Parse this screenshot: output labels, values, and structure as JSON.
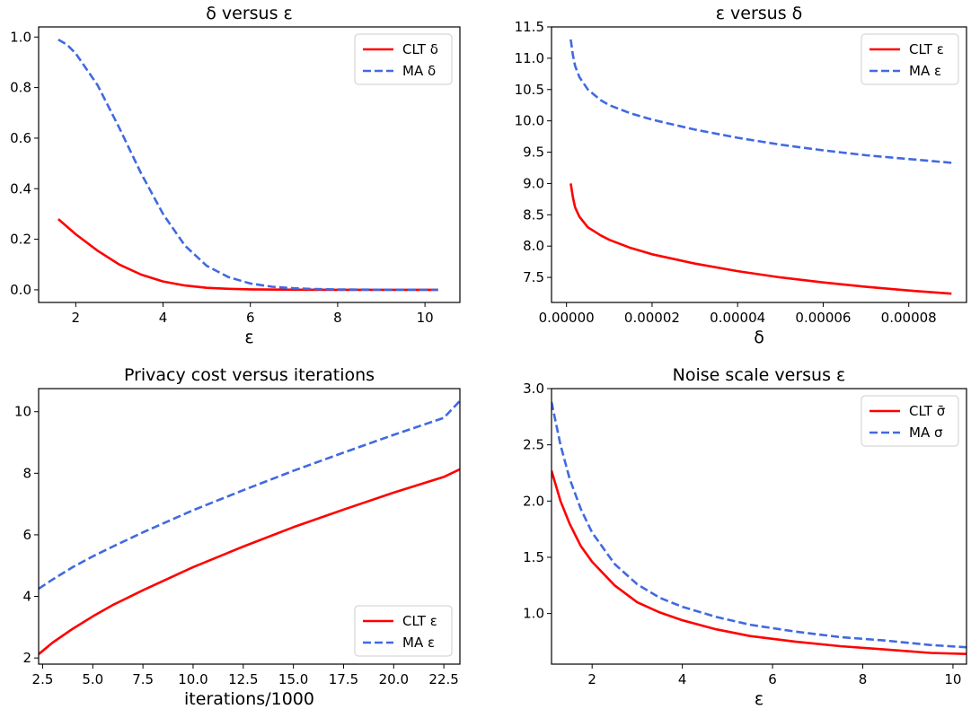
{
  "chart_data": [
    {
      "type": "line",
      "title": "δ versus ε",
      "xlabel": "ε",
      "ylabel": "",
      "xlim": [
        1.15,
        10.8
      ],
      "ylim": [
        -0.05,
        1.04
      ],
      "xticks": [
        2,
        4,
        6,
        8,
        10
      ],
      "xtick_labels": [
        "2",
        "4",
        "6",
        "8",
        "10"
      ],
      "yticks": [
        0.0,
        0.2,
        0.4,
        0.6,
        0.8,
        1.0
      ],
      "ytick_labels": [
        "0.0",
        "0.2",
        "0.4",
        "0.6",
        "0.8",
        "1.0"
      ],
      "legend_position": "top-right",
      "grid": false,
      "series": [
        {
          "name": "CLT δ",
          "color": "#ff0000",
          "style": "solid",
          "x": [
            1.6,
            2.0,
            2.5,
            3.0,
            3.5,
            4.0,
            4.5,
            5.0,
            5.5,
            6.0,
            7.0,
            8.0,
            9.0,
            10.3
          ],
          "y": [
            0.28,
            0.22,
            0.155,
            0.1,
            0.06,
            0.033,
            0.017,
            0.008,
            0.004,
            0.002,
            0.0005,
            0.0001,
            0.0,
            0.0
          ]
        },
        {
          "name": "MA δ",
          "color": "#4169e1",
          "style": "dashed",
          "x": [
            1.6,
            1.8,
            2.0,
            2.5,
            3.0,
            3.5,
            4.0,
            4.5,
            5.0,
            5.5,
            6.0,
            6.5,
            7.0,
            7.5,
            8.0,
            9.0,
            10.3
          ],
          "y": [
            0.99,
            0.97,
            0.935,
            0.81,
            0.64,
            0.46,
            0.3,
            0.175,
            0.095,
            0.05,
            0.025,
            0.012,
            0.006,
            0.003,
            0.0015,
            0.0003,
            0.0
          ]
        }
      ]
    },
    {
      "type": "line",
      "title": "ε versus δ",
      "xlabel": "δ",
      "ylabel": "",
      "xlim": [
        -3.5e-06,
        9.35e-05
      ],
      "ylim": [
        7.1,
        11.5
      ],
      "xticks": [
        0,
        2e-05,
        4e-05,
        6e-05,
        8e-05
      ],
      "xtick_labels": [
        "0.00000",
        "0.00002",
        "0.00004",
        "0.00006",
        "0.00008"
      ],
      "yticks": [
        7.5,
        8.0,
        8.5,
        9.0,
        9.5,
        10.0,
        10.5,
        11.0,
        11.5
      ],
      "ytick_labels": [
        "7.5",
        "8.0",
        "8.5",
        "9.0",
        "9.5",
        "10.0",
        "10.5",
        "11.0",
        "11.5"
      ],
      "legend_position": "top-right",
      "grid": false,
      "series": [
        {
          "name": "CLT ε",
          "color": "#ff0000",
          "style": "solid",
          "x": [
            1e-06,
            1.5e-06,
            2e-06,
            3e-06,
            5e-06,
            8e-06,
            1e-05,
            1.5e-05,
            2e-05,
            3e-05,
            4e-05,
            5e-05,
            6e-05,
            7e-05,
            8e-05,
            9e-05
          ],
          "y": [
            9.0,
            8.78,
            8.62,
            8.47,
            8.3,
            8.17,
            8.1,
            7.97,
            7.87,
            7.72,
            7.6,
            7.5,
            7.42,
            7.35,
            7.29,
            7.24
          ]
        },
        {
          "name": "MA ε",
          "color": "#4169e1",
          "style": "dashed",
          "x": [
            1e-06,
            1.5e-06,
            2e-06,
            3e-06,
            5e-06,
            8e-06,
            1e-05,
            1.5e-05,
            2e-05,
            3e-05,
            4e-05,
            5e-05,
            6e-05,
            7e-05,
            8e-05,
            9e-05
          ],
          "y": [
            11.3,
            11.05,
            10.88,
            10.7,
            10.5,
            10.33,
            10.25,
            10.12,
            10.02,
            9.86,
            9.73,
            9.62,
            9.53,
            9.45,
            9.39,
            9.33
          ]
        }
      ]
    },
    {
      "type": "line",
      "title": "Privacy cost versus iterations",
      "xlabel": "iterations/1000",
      "ylabel": "",
      "xlim": [
        2.3,
        23.3
      ],
      "ylim": [
        1.8,
        10.75
      ],
      "xticks": [
        2.5,
        5.0,
        7.5,
        10.0,
        12.5,
        15.0,
        17.5,
        20.0,
        22.5
      ],
      "xtick_labels": [
        "2.5",
        "5.0",
        "7.5",
        "10.0",
        "12.5",
        "15.0",
        "17.5",
        "20.0",
        "22.5"
      ],
      "yticks": [
        2,
        4,
        6,
        8,
        10
      ],
      "ytick_labels": [
        "2",
        "4",
        "6",
        "8",
        "10"
      ],
      "legend_position": "bottom-right",
      "grid": false,
      "series": [
        {
          "name": "CLT ε",
          "color": "#ff0000",
          "style": "solid",
          "x": [
            2.3,
            3.0,
            4.0,
            5.0,
            6.0,
            7.5,
            10.0,
            12.5,
            15.0,
            17.5,
            20.0,
            22.5,
            23.3
          ],
          "y": [
            2.12,
            2.5,
            2.95,
            3.35,
            3.72,
            4.2,
            4.95,
            5.62,
            6.25,
            6.82,
            7.37,
            7.88,
            8.13
          ]
        },
        {
          "name": "MA ε",
          "color": "#4169e1",
          "style": "dashed",
          "x": [
            2.3,
            3.0,
            4.0,
            5.0,
            6.0,
            7.5,
            10.0,
            12.5,
            15.0,
            17.5,
            20.0,
            22.5,
            23.3
          ],
          "y": [
            4.25,
            4.55,
            4.95,
            5.3,
            5.62,
            6.08,
            6.8,
            7.45,
            8.08,
            8.67,
            9.25,
            9.8,
            10.35
          ]
        }
      ]
    },
    {
      "type": "line",
      "title": "Noise scale versus ε",
      "xlabel": "ε",
      "ylabel": "",
      "xlim": [
        1.1,
        10.3
      ],
      "ylim": [
        0.55,
        3.0
      ],
      "xticks": [
        2,
        4,
        6,
        8,
        10
      ],
      "xtick_labels": [
        "2",
        "4",
        "6",
        "8",
        "10"
      ],
      "yticks": [
        1.0,
        1.5,
        2.0,
        2.5,
        3.0
      ],
      "ytick_labels": [
        "1.0",
        "1.5",
        "2.0",
        "2.5",
        "3.0"
      ],
      "legend_position": "top-right",
      "grid": false,
      "series": [
        {
          "name": "CLT σ̄",
          "color": "#ff0000",
          "style": "solid",
          "x": [
            1.1,
            1.3,
            1.5,
            1.75,
            2.0,
            2.5,
            3.0,
            3.5,
            4.0,
            4.75,
            5.5,
            6.5,
            7.5,
            8.5,
            9.5,
            10.3
          ],
          "y": [
            2.27,
            2.0,
            1.8,
            1.6,
            1.46,
            1.25,
            1.1,
            1.01,
            0.94,
            0.86,
            0.8,
            0.75,
            0.71,
            0.68,
            0.65,
            0.64
          ]
        },
        {
          "name": "MA σ",
          "color": "#4169e1",
          "style": "dashed",
          "x": [
            1.1,
            1.3,
            1.5,
            1.75,
            2.0,
            2.5,
            3.0,
            3.5,
            4.0,
            4.75,
            5.5,
            6.5,
            7.5,
            8.5,
            9.5,
            10.3
          ],
          "y": [
            2.88,
            2.5,
            2.2,
            1.93,
            1.72,
            1.44,
            1.26,
            1.14,
            1.06,
            0.97,
            0.9,
            0.84,
            0.79,
            0.76,
            0.72,
            0.7
          ]
        }
      ]
    }
  ]
}
